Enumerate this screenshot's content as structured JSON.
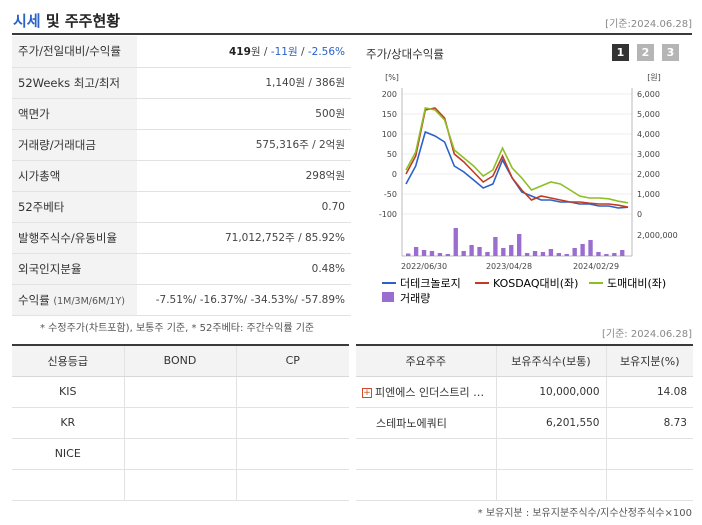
{
  "header": {
    "title_accent": "시세",
    "title_rest": " 및 주주현황",
    "ref_date": "[기준:2024.06.28]"
  },
  "price_table": {
    "rows": [
      {
        "label": "주가/전일대비/수익률",
        "price": "419",
        "unit": "원",
        "sep1": " / ",
        "change": "-11원",
        "sep2": " / ",
        "pct": "-2.56%"
      },
      {
        "label": "52Weeks 최고/최저",
        "value": "1,140원 / 386원"
      },
      {
        "label": "액면가",
        "value": "500원"
      },
      {
        "label": "거래량/거래대금",
        "value": "575,316주 / 2억원"
      },
      {
        "label": "시가총액",
        "value": "298억원"
      },
      {
        "label": "52주베타",
        "value": "0.70"
      },
      {
        "label": "발행주식수/유동비율",
        "value": "71,012,752주 / 85.92%"
      },
      {
        "label": "외국인지분율",
        "value": "0.48%"
      },
      {
        "label": "수익률",
        "label_small": "(1M/3M/6M/1Y)",
        "value": "-7.51%/ -16.37%/ -34.53%/ -57.89%"
      }
    ],
    "footnote": "* 수정주가(차트포함), 보통주 기준, * 52주베타: 주간수익률 기준"
  },
  "chart_panel": {
    "title": "주가/상대수익률",
    "tabs": [
      "1",
      "2",
      "3"
    ],
    "active_tab": "1",
    "colors": {
      "stock": "#2a62c9",
      "kosdaq": "#c23b22",
      "sector": "#8cbf26",
      "volume": "#9b6dd1",
      "tab_active": "#333333",
      "tab_inactive": "#b5b5b5"
    },
    "legend": {
      "stock": "더테크놀로지",
      "kosdaq": "KOSDAQ대비(좌)",
      "sector": "도매대비(좌)",
      "volume": "거래량"
    }
  },
  "chart_data": {
    "type": "line",
    "left_axis_unit": "[%]",
    "right_axis_unit": "[원]",
    "left_ticks": [
      "200",
      "150",
      "100",
      "50",
      "0",
      "-50",
      "-100"
    ],
    "right_ticks": [
      "6,000",
      "5,000",
      "4,000",
      "3,000",
      "2,000",
      "1,000",
      "0"
    ],
    "volume_tick": "2,000,000",
    "x_ticks": [
      "2022/06/30",
      "2023/04/28",
      "2024/02/29"
    ],
    "ylim_left": [
      -100,
      200
    ],
    "ylim_right": [
      0,
      6000
    ],
    "series": [
      {
        "name": "더테크놀로지",
        "axis": "left",
        "values": [
          -25,
          20,
          105,
          95,
          80,
          20,
          5,
          -15,
          -35,
          -25,
          35,
          -10,
          -45,
          -55,
          -65,
          -65,
          -70,
          -70,
          -75,
          -75,
          -80,
          -80,
          -85,
          -83
        ]
      },
      {
        "name": "KOSDAQ대비(좌)",
        "axis": "left",
        "values": [
          0,
          45,
          160,
          165,
          140,
          50,
          30,
          5,
          -20,
          -5,
          45,
          -10,
          -40,
          -65,
          -55,
          -60,
          -65,
          -70,
          -70,
          -73,
          -75,
          -75,
          -78,
          -83
        ]
      },
      {
        "name": "도매대비(좌)",
        "axis": "left",
        "values": [
          10,
          55,
          165,
          160,
          135,
          60,
          40,
          20,
          -5,
          10,
          65,
          15,
          -10,
          -40,
          -30,
          -20,
          -25,
          -40,
          -55,
          -60,
          -60,
          -62,
          -68,
          -72
        ]
      },
      {
        "name": "거래량",
        "axis": "volume",
        "values": [
          250000,
          900000,
          600000,
          500000,
          300000,
          200000,
          2800000,
          500000,
          1100000,
          900000,
          400000,
          1900000,
          800000,
          1100000,
          2200000,
          300000,
          500000,
          400000,
          700000,
          300000,
          200000,
          800000,
          1200000,
          1600000,
          400000,
          200000,
          300000,
          600000
        ]
      }
    ],
    "volume_max": 3000000
  },
  "credit_table": {
    "headers": [
      "신용등급",
      "BOND",
      "CP"
    ],
    "rows": [
      [
        "KIS",
        "",
        ""
      ],
      [
        "KR",
        "",
        ""
      ],
      [
        "NICE",
        "",
        ""
      ],
      [
        "",
        "",
        ""
      ]
    ]
  },
  "holder_table": {
    "ref_date": "[기준: 2024.06.28]",
    "headers": [
      "주요주주",
      "보유주식수(보통)",
      "보유지분(%)"
    ],
    "rows": [
      {
        "name": "피엔에스 인더스트리 …",
        "shares": "10,000,000",
        "pct": "14.08",
        "expandable": true
      },
      {
        "name": "스테파노에쿼티",
        "shares": "6,201,550",
        "pct": "8.73",
        "expandable": false
      },
      {
        "name": "",
        "shares": "",
        "pct": "",
        "expandable": false
      },
      {
        "name": "",
        "shares": "",
        "pct": "",
        "expandable": false
      }
    ],
    "footnote": "* 보유지분 : 보유지분주식수/지수산정주식수×100"
  }
}
